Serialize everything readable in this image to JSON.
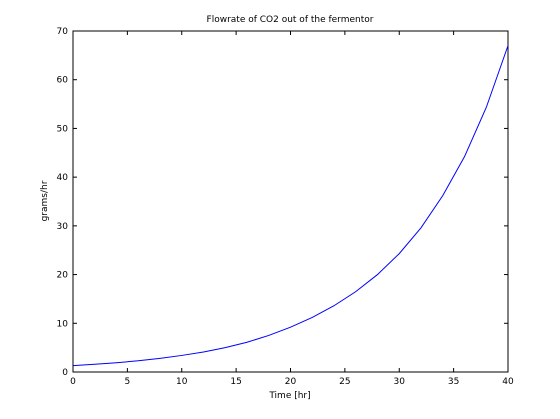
{
  "chart_data": {
    "type": "line",
    "title": "Flowrate of CO2 out of the fermentor",
    "xlabel": "Time [hr]",
    "ylabel": "grams/hr",
    "xlim": [
      0,
      40
    ],
    "ylim": [
      0,
      70
    ],
    "x_ticks": [
      "0",
      "5",
      "10",
      "15",
      "20",
      "25",
      "30",
      "35",
      "40"
    ],
    "y_ticks": [
      "0",
      "10",
      "20",
      "30",
      "40",
      "50",
      "60",
      "70"
    ],
    "grid": false,
    "legend": "none",
    "series": [
      {
        "color": "#0000ff",
        "x": [
          0,
          2,
          4,
          6,
          8,
          10,
          12,
          14,
          16,
          18,
          20,
          22,
          24,
          26,
          28,
          30,
          32,
          34,
          36,
          38,
          40
        ],
        "y": [
          1.3,
          1.6,
          1.9,
          2.3,
          2.8,
          3.4,
          4.1,
          5.0,
          6.1,
          7.5,
          9.2,
          11.2,
          13.6,
          16.5,
          20.0,
          24.3,
          29.6,
          36.2,
          44.2,
          54.3,
          67.0
        ]
      }
    ]
  }
}
